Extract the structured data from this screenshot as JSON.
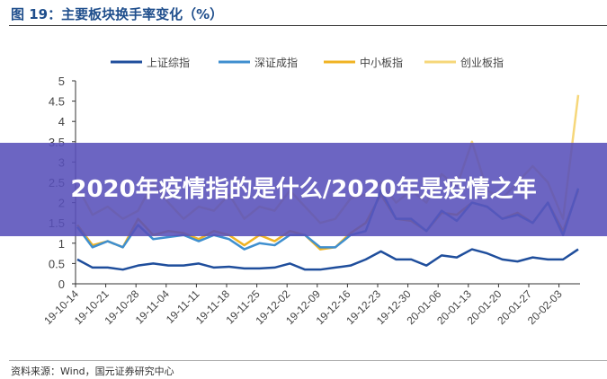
{
  "title": "图 19：主要板块换手率变化（%）",
  "banner": "2020年疫情指的是什么/2020年是疫情之年",
  "source": "资料来源：Wind，国元证券研究中心",
  "chart_data": {
    "type": "line",
    "title": "主要板块换手率变化（%）",
    "xlabel": "",
    "ylabel": "",
    "ylim": [
      0,
      5
    ],
    "yticks": [
      "0",
      "0.5",
      "1",
      "1.5",
      "2",
      "2.5",
      "3",
      "3.5",
      "4",
      "4.5",
      "5"
    ],
    "xticks": [
      "19-10-14",
      "19-10-21",
      "19-10-28",
      "19-11-04",
      "19-11-11",
      "19-11-18",
      "19-11-25",
      "19-12-02",
      "19-12-09",
      "19-12-16",
      "19-12-23",
      "19-12-30",
      "20-01-06",
      "20-01-13",
      "20-01-20",
      "20-01-27",
      "20-02-03"
    ],
    "legend_position": "top",
    "series": [
      {
        "name": "上证综指",
        "color": "#1f4e9c",
        "values": [
          0.6,
          0.4,
          0.4,
          0.35,
          0.45,
          0.5,
          0.45,
          0.45,
          0.5,
          0.4,
          0.42,
          0.38,
          0.38,
          0.4,
          0.5,
          0.35,
          0.35,
          0.4,
          0.45,
          0.6,
          0.8,
          0.6,
          0.6,
          0.45,
          0.7,
          0.65,
          0.85,
          0.75,
          0.6,
          0.55,
          0.65,
          0.6,
          0.6,
          0.85
        ]
      },
      {
        "name": "深证成指",
        "color": "#3f8fcf",
        "values": [
          1.4,
          0.9,
          1.05,
          0.9,
          1.45,
          1.1,
          1.15,
          1.2,
          1.05,
          1.2,
          1.1,
          0.85,
          1.0,
          0.95,
          1.2,
          1.2,
          0.9,
          0.9,
          1.2,
          1.3,
          2.3,
          1.6,
          1.6,
          1.3,
          1.8,
          1.55,
          2.0,
          1.9,
          1.6,
          1.7,
          1.5,
          2.0,
          1.2,
          2.35
        ]
      },
      {
        "name": "中小板指",
        "color": "#f0b323",
        "values": [
          1.45,
          0.95,
          1.05,
          0.9,
          1.6,
          1.2,
          1.3,
          1.25,
          1.1,
          1.3,
          1.2,
          0.95,
          1.2,
          1.05,
          1.3,
          1.2,
          0.85,
          0.9,
          1.25,
          1.5,
          2.2,
          1.6,
          1.55,
          1.3,
          1.75,
          1.7,
          2.0,
          1.9,
          1.6,
          1.75,
          1.5,
          2.0,
          1.3,
          2.3
        ]
      },
      {
        "name": "创业板指",
        "color": "#f6d77a",
        "values": [
          2.4,
          1.7,
          1.9,
          1.6,
          1.8,
          2.5,
          2.0,
          1.6,
          1.9,
          1.8,
          2.2,
          1.6,
          1.9,
          1.8,
          2.3,
          1.9,
          1.5,
          1.6,
          2.1,
          2.2,
          2.5,
          2.0,
          2.3,
          2.0,
          2.7,
          2.4,
          3.5,
          2.3,
          2.1,
          2.5,
          2.9,
          2.5,
          1.6,
          4.65
        ]
      }
    ]
  }
}
